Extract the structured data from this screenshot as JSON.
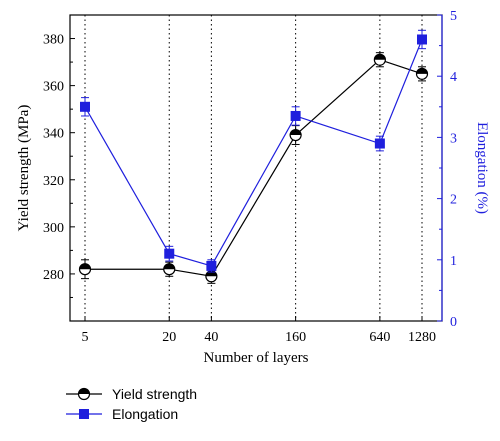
{
  "chart_data": {
    "type": "line",
    "x_scale": "log",
    "x": [
      5,
      20,
      40,
      160,
      640,
      1280
    ],
    "xticks": [
      "5",
      "20",
      "40",
      "160",
      "640",
      "1280"
    ],
    "xlabel": "Number of layers",
    "ylabel_left": "Yield strength (MPa)",
    "ylabel_right": "Elongation (%)",
    "ylim_left": [
      260,
      390
    ],
    "ylim_right": [
      0,
      5
    ],
    "yticks_left": [
      "280",
      "300",
      "320",
      "340",
      "360",
      "380"
    ],
    "yticks_right": [
      "0",
      "1",
      "2",
      "3",
      "4",
      "5"
    ],
    "vertical_dotted_gridlines": true,
    "legend_position": "bottom-left",
    "series": [
      {
        "name": "Yield strength",
        "axis": "left",
        "marker": "half-filled circle",
        "color": "#000000",
        "values": [
          282,
          282,
          279,
          339,
          371,
          365
        ],
        "errors": [
          4,
          3,
          3,
          4,
          3,
          3
        ]
      },
      {
        "name": "Elongation",
        "axis": "right",
        "marker": "square",
        "color": "#1f1fdd",
        "values": [
          3.5,
          1.1,
          0.9,
          3.35,
          2.9,
          4.6
        ],
        "errors": [
          0.15,
          0.12,
          0.1,
          0.15,
          0.12,
          0.15
        ]
      }
    ]
  }
}
